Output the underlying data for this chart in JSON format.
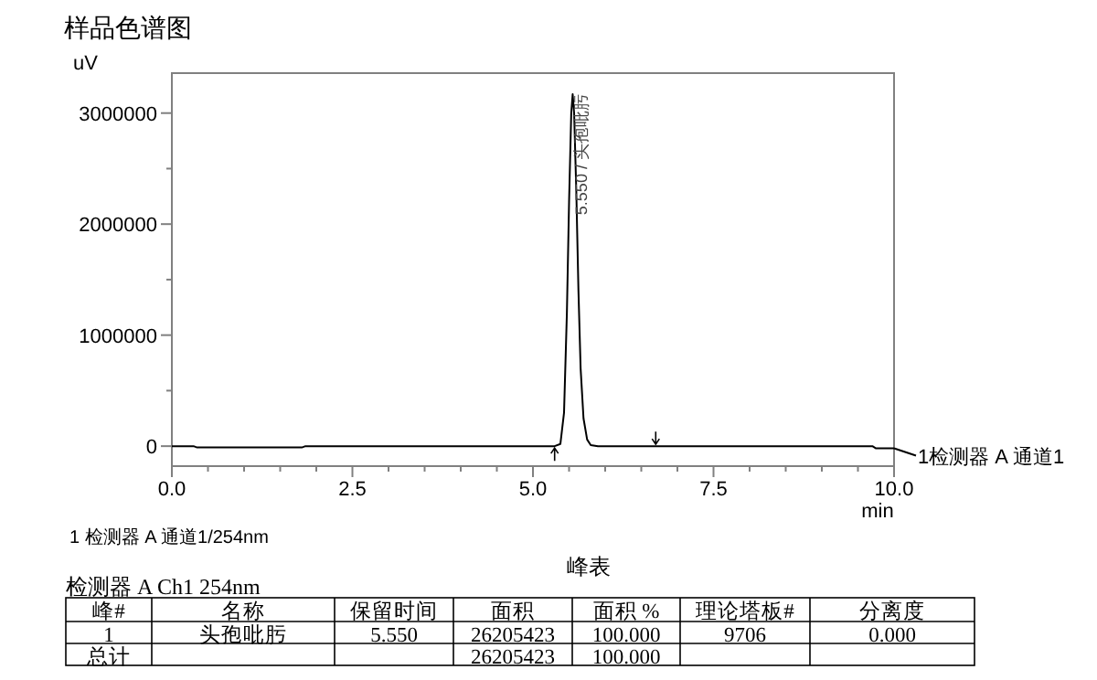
{
  "chart_data": [
    {
      "type": "line",
      "title": "样品色谱图",
      "ylabel": "uV",
      "xlabel": "min",
      "xlim": [
        0,
        10
      ],
      "xticks": [
        {
          "value": 0,
          "label": "0.0"
        },
        {
          "value": 2.5,
          "label": "2.5"
        },
        {
          "value": 5,
          "label": "5.0"
        },
        {
          "value": 7.5,
          "label": "7.5"
        },
        {
          "value": 10,
          "label": "10.0"
        }
      ],
      "ylim": [
        -180000,
        3360000
      ],
      "yticks": [
        0,
        {
          "value": 500000,
          "label": null
        },
        1000000,
        {
          "value": 1500000,
          "label": null
        },
        2000000,
        {
          "value": 2500000,
          "label": null
        },
        3000000
      ],
      "series": [
        {
          "name": "1检测器 A 通道1",
          "color": "#000000",
          "x": [
            0,
            0.3,
            0.35,
            1.8,
            1.85,
            5.3,
            5.38,
            5.43,
            5.47,
            5.5,
            5.53,
            5.55,
            5.57,
            5.6,
            5.63,
            5.66,
            5.7,
            5.75,
            5.8,
            5.9,
            9.7,
            9.75,
            10
          ],
          "values": [
            0,
            0,
            -12000,
            -12000,
            0,
            0,
            20000,
            300000,
            1200000,
            2200000,
            3000000,
            3170000,
            3000000,
            2300000,
            1400000,
            700000,
            250000,
            60000,
            10000,
            0,
            0,
            -20000,
            -20000
          ]
        }
      ],
      "annotations": [
        {
          "text": "5.550 / 头孢吡肟",
          "x": 5.55,
          "y": 3170000
        },
        "1 检测器 A 通道1/254nm"
      ],
      "legend": "right",
      "grid": false
    },
    {
      "type": "other",
      "title": "峰表",
      "subtitle": "检测器 A Ch1 254nm",
      "categories": [
        "峰#",
        "名称",
        "保留时间",
        "面积",
        "面积 %",
        "理论塔板#",
        "分离度"
      ],
      "annotations": [
        "1",
        "头孢吡肟",
        "5.550",
        "26205423",
        "100.000",
        "9706",
        "0.000",
        "总计",
        null,
        null,
        "26205423",
        "100.000",
        null,
        null
      ]
    }
  ]
}
